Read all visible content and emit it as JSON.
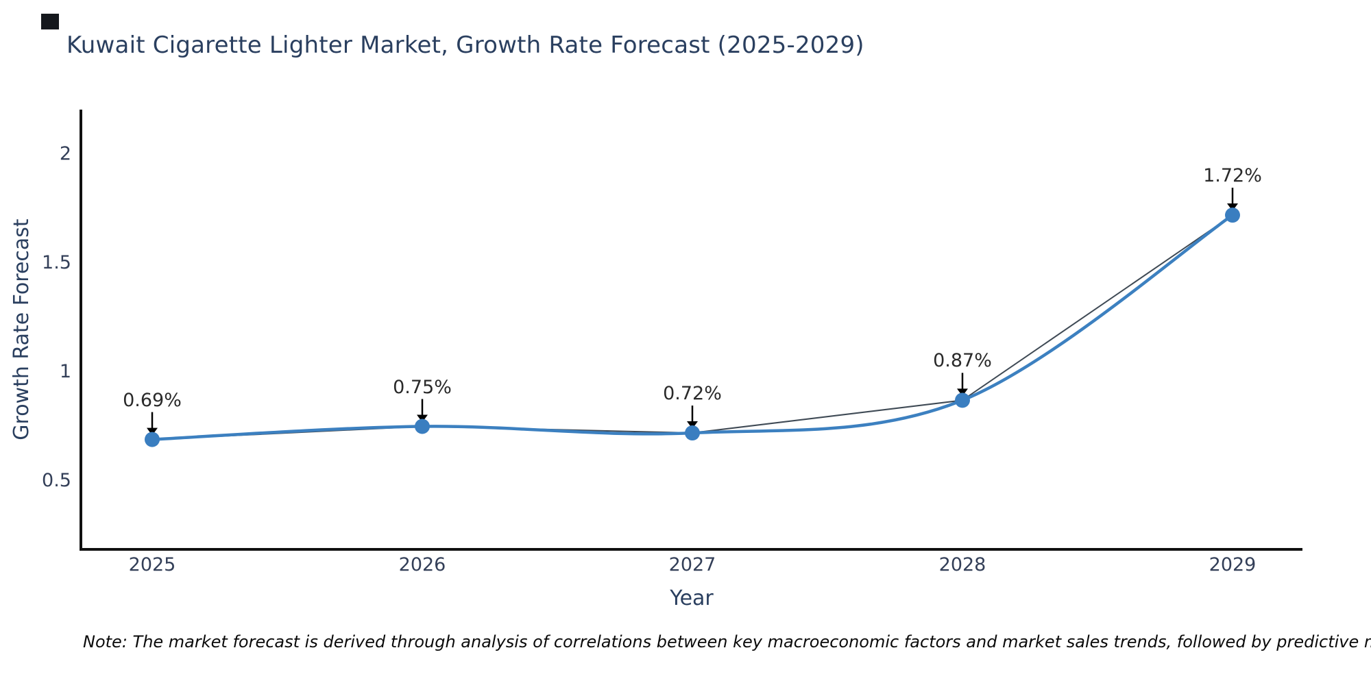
{
  "title": "Kuwait Cigarette Lighter Market, Growth Rate Forecast (2025-2029)",
  "note": "Note: The market forecast is derived through analysis of correlations between key macroeconomic factors and market sales trends, followed by predictive modeling to project future sales",
  "chart_data": {
    "type": "line",
    "title": "Kuwait Cigarette Lighter Market, Growth Rate Forecast (2025-2029)",
    "xlabel": "Year",
    "ylabel": "Growth Rate Forecast",
    "x": [
      2025,
      2026,
      2027,
      2028,
      2029
    ],
    "values": [
      0.69,
      0.75,
      0.72,
      0.87,
      1.72
    ],
    "point_labels": [
      "0.69%",
      "0.75%",
      "0.72%",
      "0.87%",
      "1.72%"
    ],
    "xtick_labels": [
      "2025",
      "2026",
      "2027",
      "2028",
      "2029"
    ],
    "ytick_values": [
      0.5,
      1,
      1.5,
      2
    ],
    "ytick_labels": [
      "0.5",
      "1",
      "1.5",
      "2"
    ],
    "ylim": [
      0.18,
      2.21
    ],
    "xlim": [
      2024.74,
      2029.26
    ],
    "grid": false,
    "legend_position": "none",
    "line_style": "spline",
    "marker": "circle",
    "annotation_arrows": true
  },
  "colors": {
    "background": "#ffffff",
    "title_text": "#2a3f5f",
    "tick_text": "#333f58",
    "axis_line": "#111111",
    "series_line": "#3c80c0",
    "marker_fill": "#3a7ec0",
    "trend_underline": "#3f4a55",
    "annotation_text": "#2a2a2a",
    "arrow": "#000000",
    "note_text": "#0a0a0a"
  }
}
